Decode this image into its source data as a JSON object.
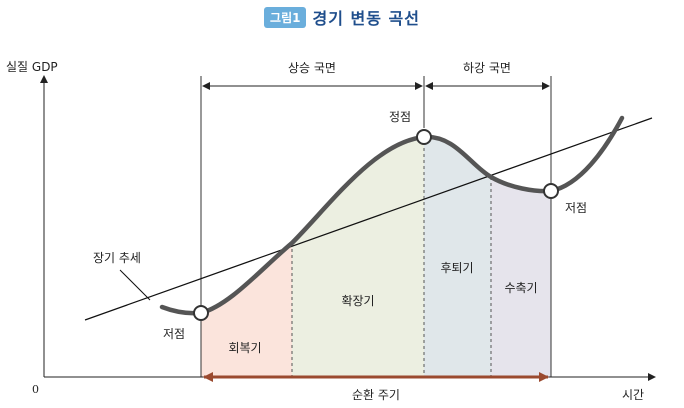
{
  "title": {
    "badge": "그림1",
    "text": "경기 변동 곡선"
  },
  "axes": {
    "y_label": "실질 GDP",
    "x_label": "시간",
    "origin": "0"
  },
  "phases": {
    "rising": "상승 국면",
    "falling": "하강 국면",
    "cycle": "순환 주기"
  },
  "stages": {
    "recovery": "회복기",
    "expansion": "확장기",
    "recession": "후퇴기",
    "contraction": "수축기"
  },
  "points": {
    "trough_left": "저점",
    "peak": "정점",
    "trough_right": "저점"
  },
  "trend_label": "장기 추세",
  "colors": {
    "recovery": "#fbe4dc",
    "expansion": "#ecefe1",
    "recession": "#e0e7ea",
    "contraction": "#e6e4ec",
    "curve": "#555555",
    "cycle_arrow": "#9b4a2f",
    "title": "#1f4e8c",
    "badge": "#6aaedc"
  }
}
